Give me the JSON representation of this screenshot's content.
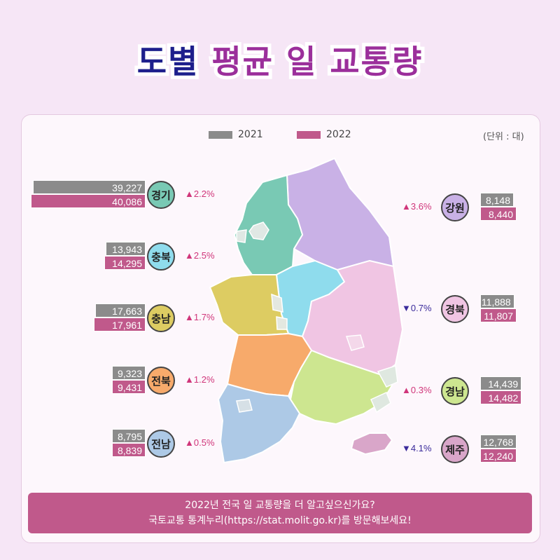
{
  "title": {
    "part1": "도별",
    "part2": "평균 일 교통량"
  },
  "unit_label": "(단위 : 대)",
  "footer": {
    "line1": "2022년 전국 일 교통량을 더 알고싶으신가요?",
    "line2": "국토교통 통계누리(https://stat.molit.go.kr)를 방문해보세요!"
  },
  "chart_data": {
    "type": "bar",
    "series": [
      {
        "name": "2021",
        "color": "#8b8b8b"
      },
      {
        "name": "2022",
        "color": "#c0598b"
      }
    ],
    "regions": [
      {
        "name": "경기",
        "v2021": 39227,
        "v2022": 40086,
        "v2021_label": "39,227",
        "v2022_label": "40,086",
        "change": "▲2.2%",
        "dir": "up",
        "color": "#79c9b4",
        "side": "left"
      },
      {
        "name": "충북",
        "v2021": 13943,
        "v2022": 14295,
        "v2021_label": "13,943",
        "v2022_label": "14,295",
        "change": "▲2.5%",
        "dir": "up",
        "color": "#8fdced",
        "side": "left"
      },
      {
        "name": "충남",
        "v2021": 17663,
        "v2022": 17961,
        "v2021_label": "17,663",
        "v2022_label": "17,961",
        "change": "▲1.7%",
        "dir": "up",
        "color": "#ddcc62",
        "side": "left"
      },
      {
        "name": "전북",
        "v2021": 9323,
        "v2022": 9431,
        "v2021_label": "9,323",
        "v2022_label": "9,431",
        "change": "▲1.2%",
        "dir": "up",
        "color": "#f7aa6b",
        "side": "left"
      },
      {
        "name": "전남",
        "v2021": 8795,
        "v2022": 8839,
        "v2021_label": "8,795",
        "v2022_label": "8,839",
        "change": "▲0.5%",
        "dir": "up",
        "color": "#adc9e6",
        "side": "left"
      },
      {
        "name": "강원",
        "v2021": 8148,
        "v2022": 8440,
        "v2021_label": "8,148",
        "v2022_label": "8,440",
        "change": "▲3.6%",
        "dir": "up",
        "color": "#c9b1e6",
        "side": "right"
      },
      {
        "name": "경북",
        "v2021": 11888,
        "v2022": 11807,
        "v2021_label": "11,888",
        "v2022_label": "11,807",
        "change": "▼0.7%",
        "dir": "down",
        "color": "#f0c5e3",
        "side": "right"
      },
      {
        "name": "경남",
        "v2021": 14439,
        "v2022": 14482,
        "v2021_label": "14,439",
        "v2022_label": "14,482",
        "change": "▲0.3%",
        "dir": "up",
        "color": "#cde690",
        "side": "right"
      },
      {
        "name": "제주",
        "v2021": 12768,
        "v2022": 12240,
        "v2021_label": "12,768",
        "v2022_label": "12,240",
        "change": "▼4.1%",
        "dir": "down",
        "color": "#d9a6c9",
        "side": "right"
      }
    ]
  }
}
